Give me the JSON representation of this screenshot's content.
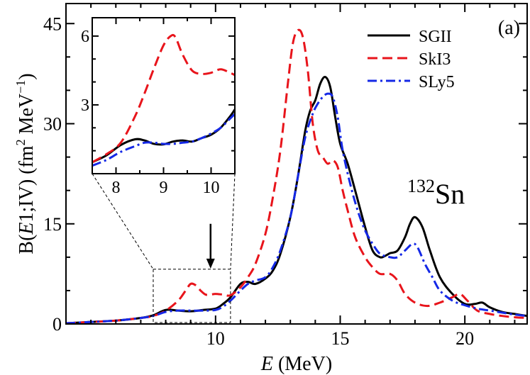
{
  "chart_data": {
    "type": "line",
    "panel_label": "(a)",
    "xlabel": {
      "italic": "E",
      "rest": " (MeV)"
    },
    "ylabel": {
      "pre": "B(",
      "italic": "E",
      "mid": "1;IV)  (fm",
      "sup2": "2",
      "mid2": " MeV",
      "supm1": "−1",
      "post": ")"
    },
    "xlim": [
      4.0,
      22.5
    ],
    "ylim": [
      0,
      48
    ],
    "xticks": [
      10,
      15,
      20
    ],
    "yticks": [
      0,
      15,
      30,
      45
    ],
    "nucleus": {
      "mass": "132",
      "symbol": "Sn"
    },
    "arrow_annotation": {
      "x": 9.8,
      "y_tail": 15.0,
      "y_head": 8.3
    },
    "zoom_region": {
      "x": [
        7.5,
        10.6
      ],
      "y": [
        0,
        8.2
      ]
    },
    "colors": {
      "SGII": "#000000",
      "SkI3": "#e8141b",
      "SLy5": "#1428e6"
    },
    "series": [
      {
        "name": "SGII",
        "x": [
          4,
          5,
          6,
          7,
          7.5,
          8,
          8.5,
          9,
          9.5,
          10,
          10.3,
          10.6,
          11,
          11.3,
          11.6,
          12,
          12.3,
          12.6,
          13,
          13.3,
          13.6,
          13.8,
          14,
          14.2,
          14.4,
          14.6,
          14.8,
          15,
          15.3,
          15.6,
          16,
          16.3,
          16.6,
          16.8,
          17,
          17.3,
          17.6,
          17.8,
          18,
          18.3,
          18.6,
          19,
          19.5,
          20,
          20.4,
          20.7,
          21,
          21.5,
          22,
          22.5
        ],
        "y": [
          0.1,
          0.3,
          0.5,
          0.9,
          1.3,
          2.1,
          2.0,
          1.9,
          2.1,
          2.3,
          3.0,
          4.0,
          6.0,
          6.3,
          6.0,
          6.8,
          8.0,
          10.5,
          16.0,
          22.0,
          29.0,
          32.0,
          33.5,
          36.0,
          37.0,
          35.5,
          31.0,
          27.0,
          24.0,
          20.0,
          14.5,
          11.0,
          10.0,
          10.2,
          10.6,
          11.0,
          13.0,
          15.0,
          16.0,
          14.5,
          11.0,
          7.0,
          4.5,
          3.0,
          3.0,
          3.2,
          2.5,
          1.8,
          1.5,
          1.2
        ]
      },
      {
        "name": "SkI3",
        "x": [
          4,
          5,
          6,
          7,
          7.5,
          8,
          8.5,
          8.8,
          9.0,
          9.2,
          9.4,
          9.6,
          9.8,
          10.0,
          10.3,
          10.6,
          11,
          11.3,
          11.6,
          12,
          12.3,
          12.6,
          12.9,
          13.1,
          13.3,
          13.5,
          13.7,
          13.9,
          14.1,
          14.3,
          14.5,
          14.7,
          14.9,
          15.1,
          15.3,
          15.6,
          16,
          16.3,
          16.6,
          17,
          17.3,
          17.6,
          18,
          18.5,
          19,
          19.5,
          19.8,
          20.1,
          20.5,
          21,
          21.5,
          22,
          22.5
        ],
        "y": [
          0.1,
          0.3,
          0.5,
          0.9,
          1.2,
          2.0,
          3.5,
          5.0,
          6.0,
          5.8,
          5.0,
          4.4,
          4.4,
          4.5,
          4.4,
          4.3,
          5.5,
          7.0,
          9.0,
          13.5,
          19.0,
          26.0,
          36.0,
          42.0,
          44.0,
          43.0,
          38.0,
          30.0,
          26.0,
          25.0,
          24.0,
          24.5,
          23.5,
          20.0,
          17.0,
          13.0,
          10.0,
          8.5,
          7.5,
          7.5,
          6.5,
          4.5,
          3.2,
          2.7,
          3.2,
          4.0,
          4.5,
          3.5,
          2.0,
          1.5,
          1.2,
          1.0,
          0.9
        ]
      },
      {
        "name": "SLy5",
        "x": [
          4,
          5,
          6,
          7,
          7.5,
          8,
          8.5,
          9,
          9.5,
          10,
          10.3,
          10.6,
          11,
          11.3,
          11.6,
          12,
          12.3,
          12.6,
          13,
          13.3,
          13.6,
          13.9,
          14.1,
          14.3,
          14.5,
          14.7,
          14.9,
          15.1,
          15.4,
          15.7,
          16,
          16.3,
          16.6,
          17,
          17.3,
          17.6,
          17.9,
          18.1,
          18.4,
          18.7,
          19,
          19.5,
          20,
          20.5,
          21,
          21.5,
          22,
          22.5
        ],
        "y": [
          0.1,
          0.3,
          0.5,
          0.9,
          1.2,
          1.8,
          2.0,
          2.0,
          2.0,
          2.1,
          2.6,
          3.5,
          5.0,
          6.0,
          6.5,
          7.0,
          8.5,
          11.0,
          16.0,
          22.0,
          28.0,
          31.5,
          33.0,
          34.0,
          34.5,
          34.0,
          31.0,
          26.0,
          21.0,
          17.0,
          14.0,
          12.0,
          10.5,
          10.0,
          10.0,
          11.0,
          12.0,
          11.5,
          9.0,
          7.0,
          5.0,
          3.5,
          2.8,
          2.3,
          2.0,
          1.7,
          1.4,
          1.2
        ]
      }
    ],
    "inset": {
      "xlim": [
        7.5,
        10.5
      ],
      "ylim": [
        0,
        6.8
      ],
      "xticks": [
        8,
        9,
        10
      ],
      "yticks": [
        3,
        6
      ],
      "series": [
        {
          "name": "SGII",
          "x": [
            7.5,
            7.8,
            8.1,
            8.4,
            8.6,
            8.8,
            9.0,
            9.2,
            9.4,
            9.6,
            9.8,
            10.0,
            10.2,
            10.4,
            10.5
          ],
          "y": [
            0.5,
            0.8,
            1.25,
            1.5,
            1.45,
            1.3,
            1.28,
            1.4,
            1.45,
            1.4,
            1.55,
            1.7,
            2.0,
            2.5,
            2.8
          ]
        },
        {
          "name": "SkI3",
          "x": [
            7.5,
            7.8,
            8.1,
            8.4,
            8.6,
            8.8,
            9.0,
            9.15,
            9.25,
            9.4,
            9.6,
            9.8,
            10.0,
            10.2,
            10.4,
            10.5
          ],
          "y": [
            0.5,
            0.85,
            1.35,
            2.5,
            3.5,
            4.6,
            5.6,
            6.0,
            5.95,
            5.2,
            4.5,
            4.35,
            4.4,
            4.55,
            4.4,
            4.3
          ]
        },
        {
          "name": "SLy5",
          "x": [
            7.5,
            7.8,
            8.1,
            8.4,
            8.6,
            8.8,
            9.0,
            9.2,
            9.4,
            9.6,
            9.8,
            10.0,
            10.2,
            10.4,
            10.5
          ],
          "y": [
            0.35,
            0.6,
            0.95,
            1.2,
            1.35,
            1.35,
            1.3,
            1.3,
            1.35,
            1.4,
            1.55,
            1.75,
            2.0,
            2.4,
            2.6
          ]
        }
      ]
    }
  }
}
